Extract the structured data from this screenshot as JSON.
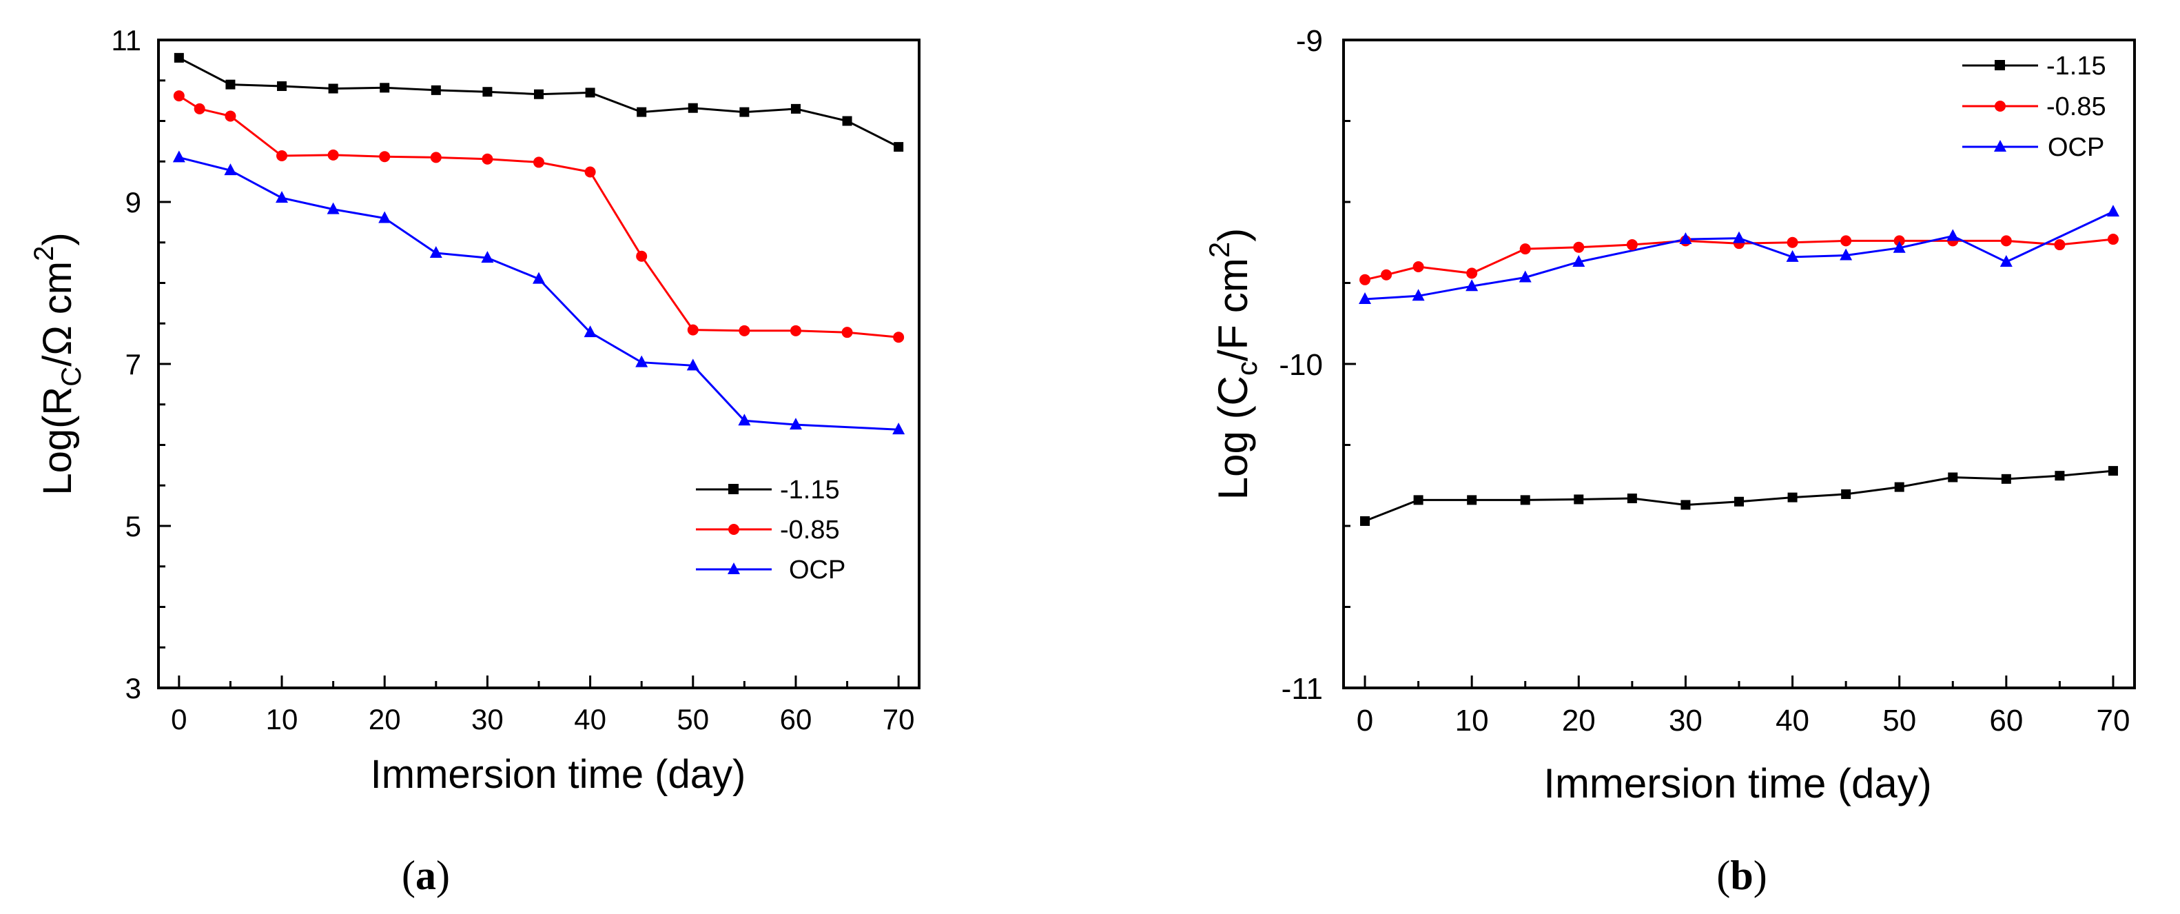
{
  "chart_data": [
    {
      "type": "line",
      "panel": "a",
      "caption": {
        "open": "(",
        "letter": "a",
        "close": ")"
      },
      "xlabel": "Immersion time (day)",
      "ylabel": {
        "prefix": "Log(R",
        "sub": "C",
        "mid": "/Ω cm",
        "sup": "2",
        "suffix": ")"
      },
      "xlim": [
        -2,
        72
      ],
      "ylim": [
        3,
        11
      ],
      "xticks": [
        0,
        10,
        20,
        30,
        40,
        50,
        60,
        70
      ],
      "yticks": [
        3,
        5,
        7,
        9,
        11
      ],
      "ytick_labels": [
        "3",
        "5",
        "7",
        "9",
        "11"
      ],
      "legend_position": "middle-right",
      "series": [
        {
          "name": "-1.15",
          "color": "#000000",
          "marker": "square",
          "x": [
            0,
            5,
            10,
            15,
            20,
            25,
            30,
            35,
            40,
            45,
            50,
            55,
            60,
            65,
            70
          ],
          "y": [
            10.78,
            10.45,
            10.43,
            10.4,
            10.41,
            10.38,
            10.36,
            10.33,
            10.35,
            10.11,
            10.16,
            10.11,
            10.15,
            10.0,
            9.68
          ]
        },
        {
          "name": "-0.85",
          "color": "#ff0000",
          "marker": "circle",
          "x": [
            0,
            2,
            5,
            10,
            15,
            20,
            25,
            30,
            35,
            40,
            45,
            50,
            55,
            60,
            65,
            70
          ],
          "y": [
            10.31,
            10.15,
            10.06,
            9.57,
            9.58,
            9.56,
            9.55,
            9.53,
            9.49,
            9.37,
            8.33,
            7.42,
            7.41,
            7.41,
            7.39,
            7.33
          ]
        },
        {
          "name": "OCP",
          "color": "#0000ff",
          "marker": "triangle",
          "x": [
            0,
            5,
            10,
            15,
            20,
            25,
            30,
            35,
            40,
            45,
            50,
            55,
            60,
            70
          ],
          "y": [
            9.55,
            9.39,
            9.05,
            8.91,
            8.8,
            8.37,
            8.31,
            8.05,
            7.39,
            7.02,
            6.98,
            6.3,
            6.25,
            6.19
          ]
        }
      ]
    },
    {
      "type": "line",
      "panel": "b",
      "caption": {
        "open": "(",
        "letter": "b",
        "close": ")"
      },
      "xlabel": "Immersion time (day)",
      "ylabel": {
        "prefix": "Log (C",
        "sub": "c",
        "mid": "/F cm",
        "sup": "2",
        "suffix": ")"
      },
      "xlim": [
        -2,
        72
      ],
      "ylim": [
        -11,
        -9
      ],
      "xticks": [
        0,
        10,
        20,
        30,
        40,
        50,
        60,
        70
      ],
      "yticks": [
        -11,
        -10,
        -9
      ],
      "ytick_labels": [
        "-11",
        "-10",
        "-9"
      ],
      "legend_position": "top-right",
      "series": [
        {
          "name": "-1.15",
          "color": "#000000",
          "marker": "square",
          "x": [
            0,
            5,
            10,
            15,
            20,
            25,
            30,
            35,
            40,
            45,
            50,
            55,
            60,
            65,
            70
          ],
          "y": [
            -10.485,
            -10.42,
            -10.42,
            -10.42,
            -10.418,
            -10.415,
            -10.435,
            -10.425,
            -10.412,
            -10.402,
            -10.38,
            -10.35,
            -10.355,
            -10.345,
            -10.33
          ]
        },
        {
          "name": "-0.85",
          "color": "#ff0000",
          "marker": "circle",
          "x": [
            0,
            2,
            5,
            10,
            15,
            20,
            25,
            30,
            35,
            40,
            45,
            50,
            55,
            60,
            65,
            70
          ],
          "y": [
            -9.74,
            -9.725,
            -9.7,
            -9.72,
            -9.645,
            -9.64,
            -9.632,
            -9.62,
            -9.628,
            -9.625,
            -9.62,
            -9.62,
            -9.62,
            -9.62,
            -9.632,
            -9.615
          ]
        },
        {
          "name": "OCP",
          "color": "#0000ff",
          "marker": "triangle",
          "x": [
            0,
            5,
            10,
            15,
            20,
            30,
            35,
            40,
            45,
            50,
            55,
            60,
            70
          ],
          "y": [
            -9.8,
            -9.79,
            -9.76,
            -9.733,
            -9.685,
            -9.615,
            -9.612,
            -9.67,
            -9.665,
            -9.642,
            -9.605,
            -9.685,
            -9.53
          ]
        }
      ]
    }
  ]
}
